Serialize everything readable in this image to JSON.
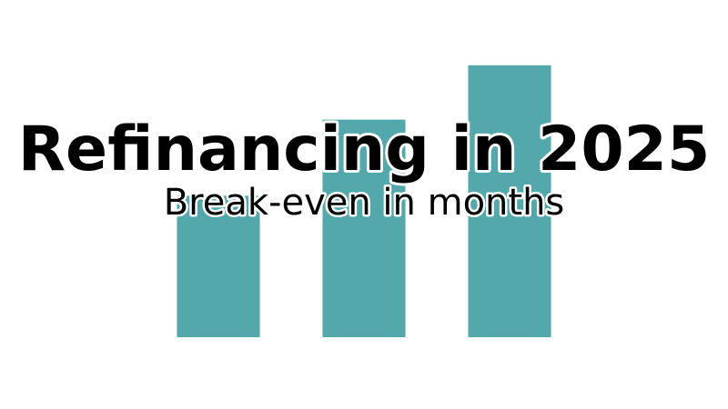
{
  "chart_data": {
    "type": "bar",
    "title": "Refinancing in 2025",
    "subtitle": "Break-even in months",
    "categories": [
      "",
      "",
      ""
    ],
    "values": [
      26,
      40,
      50
    ],
    "ylim": [
      0,
      62
    ],
    "xlabel": "",
    "ylabel": "",
    "grid": false,
    "bar_color": "#52a8aa",
    "background": "#ffffff"
  }
}
